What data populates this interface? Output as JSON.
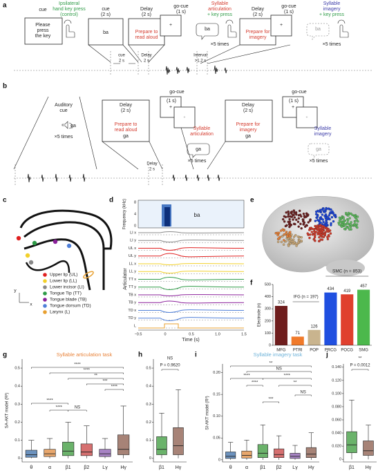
{
  "labels": [
    "a",
    "cue",
    "Ipsilateral",
    "hand key press",
    "(control)",
    "Please",
    "press",
    "the key",
    "cue",
    "(2 s)",
    "Delay",
    "(2 s)",
    "go-cue",
    "(1 s)",
    "ba",
    "+",
    "Prepare to",
    "read aloud",
    "Syllable",
    "articulation",
    "+ key press",
    "ba",
    "×5 times",
    "Delay",
    "(2 s)",
    "go-cue",
    "(1 s)",
    "+",
    "Prepare for",
    "imagery",
    "Syllable",
    "imagery",
    "+ key press",
    "ba",
    "×5 times",
    "cue",
    "2 s",
    "Delay",
    "2 s",
    "Interval",
    ">1.2 s",
    "b",
    "go-cue",
    "(1 s)",
    "+",
    "go-cue",
    "(1 s)",
    "+",
    "Auditory",
    "cue",
    "ga",
    "×5 times",
    "Delay",
    "(2 s)",
    "Prepare to",
    "read aloud",
    "ga",
    "+",
    "Syllable",
    "articulation",
    "ga",
    "×5 times",
    "Delay",
    "(2 s)",
    "Prepare for",
    "imagery",
    "ga",
    "+",
    "Syllable",
    "imagery",
    "ga",
    "×5 times",
    "Delay",
    "2 s",
    "c",
    "Upper lip (UL)",
    "Lower lip (LL)",
    "Lower incisor (LI)",
    "Tongue Tip (TT)",
    "Tongue blade (TB)",
    "Tongue dorsum (TD)",
    "Larynx (L)",
    "y",
    "x",
    "d",
    "ba",
    "Frequency (kHz)",
    "Articulator",
    "LI x",
    "LI y",
    "UL x",
    "UL y",
    "LL x",
    "LL y",
    "TT x",
    "TT y",
    "TB x",
    "TB y",
    "TD x",
    "TD y",
    "L",
    "Time (s)",
    "8",
    "4",
    "0",
    "−0.5",
    "0",
    "0.5",
    "1.0",
    "1.5",
    "e",
    "f",
    "g",
    "h",
    "i",
    "j"
  ],
  "chart_data": [
    {
      "type": "bar",
      "y_label": "Electrode (n)",
      "categories": [
        "MFG",
        "PTRI",
        "POP",
        "PRCG",
        "POCG",
        "SMG"
      ],
      "values": [
        324,
        71,
        126,
        434,
        419,
        457
      ],
      "colors": [
        "#6e1d1d",
        "#f07a2a",
        "#c9b48e",
        "#1f4fe0",
        "#e0402e",
        "#4cb84c"
      ],
      "ylim": [
        0,
        500
      ],
      "yticks": [
        0,
        100,
        200,
        300,
        400,
        500
      ],
      "annotations": [
        "IFG (n = 197)",
        "SMC (n = 853)"
      ]
    },
    {
      "type": "box",
      "title": "Syllable articulation task",
      "title_color": "#e8833a",
      "y_label": "SA-AKT model (R²)",
      "categories": [
        "θ",
        "α",
        "β1",
        "β2",
        "Lγ",
        "Hγ"
      ],
      "colors": [
        "#3b6ea8",
        "#e08a3c",
        "#3a9a3a",
        "#c84040",
        "#8a5ab0",
        "#8a5a4a"
      ],
      "boxes": [
        {
          "whislo": 0,
          "q1": 0.006,
          "median": 0.02,
          "q3": 0.045,
          "whishi": 0.1
        },
        {
          "whislo": 0,
          "q1": 0.01,
          "median": 0.025,
          "q3": 0.05,
          "whishi": 0.11
        },
        {
          "whislo": 0,
          "q1": 0.015,
          "median": 0.04,
          "q3": 0.09,
          "whishi": 0.2
        },
        {
          "whislo": 0,
          "q1": 0.015,
          "median": 0.035,
          "q3": 0.08,
          "whishi": 0.18
        },
        {
          "whislo": 0,
          "q1": 0.01,
          "median": 0.025,
          "q3": 0.05,
          "whishi": 0.11
        },
        {
          "whislo": 0,
          "q1": 0.02,
          "median": 0.05,
          "q3": 0.13,
          "whishi": 0.29
        }
      ],
      "ylim": [
        -0.02,
        0.55
      ],
      "yticks": [
        0,
        0.1,
        0.2,
        0.3,
        0.4,
        0.5
      ],
      "annotations": [
        "****",
        "****",
        "**",
        "***",
        "****",
        "****",
        "****",
        "NS"
      ]
    },
    {
      "type": "box",
      "categories": [
        "β1",
        "Hγ"
      ],
      "colors": [
        "#3a9a3a",
        "#8a5a4a"
      ],
      "boxes": [
        {
          "whislo": 0,
          "q1": 0.02,
          "median": 0.05,
          "q3": 0.12,
          "whishi": 0.25
        },
        {
          "whislo": 0,
          "q1": 0.02,
          "median": 0.07,
          "q3": 0.17,
          "whishi": 0.38
        }
      ],
      "ylim": [
        -0.02,
        0.55
      ],
      "yticks": [
        0,
        0.1,
        0.2,
        0.3,
        0.4,
        0.5
      ],
      "annotations": [
        "NS",
        "P = 0.9620"
      ]
    },
    {
      "type": "box",
      "title": "Syllable imagery task",
      "title_color": "#6fb3d9",
      "y_label": "SI-AKT model (R²)",
      "categories": [
        "θ",
        "α",
        "β1",
        "β2",
        "Lγ",
        "Hγ"
      ],
      "colors": [
        "#3b6ea8",
        "#e08a3c",
        "#3a9a3a",
        "#c84040",
        "#8a5ab0",
        "#8a5a4a"
      ],
      "boxes": [
        {
          "whislo": 0,
          "q1": 0.003,
          "median": 0.008,
          "q3": 0.018,
          "whishi": 0.04
        },
        {
          "whislo": 0,
          "q1": 0.004,
          "median": 0.01,
          "q3": 0.02,
          "whishi": 0.045
        },
        {
          "whislo": 0,
          "q1": 0.005,
          "median": 0.015,
          "q3": 0.035,
          "whishi": 0.08
        },
        {
          "whislo": 0,
          "q1": 0.005,
          "median": 0.012,
          "q3": 0.025,
          "whishi": 0.055
        },
        {
          "whislo": 0,
          "q1": 0.003,
          "median": 0.008,
          "q3": 0.015,
          "whishi": 0.033
        },
        {
          "whislo": 0,
          "q1": 0.005,
          "median": 0.013,
          "q3": 0.028,
          "whishi": 0.062
        }
      ],
      "ylim": [
        -0.005,
        0.22
      ],
      "yticks": [
        0,
        0.05,
        {
          "value": 0.1,
          "label": "0.10"
        },
        0.15,
        {
          "value": 0.2,
          "label": "0.20"
        }
      ],
      "annotations": [
        "**",
        "NS",
        "****",
        "****",
        "****",
        "**",
        "NS",
        "***"
      ]
    },
    {
      "type": "box",
      "categories": [
        "β1",
        "Hγ"
      ],
      "colors": [
        "#3a9a3a",
        "#8a5a4a"
      ],
      "boxes": [
        {
          "whislo": 0,
          "q1": 0.01,
          "median": 0.022,
          "q3": 0.042,
          "whishi": 0.09
        },
        {
          "whislo": 0,
          "q1": 0.006,
          "median": 0.013,
          "q3": 0.028,
          "whishi": 0.052
        }
      ],
      "ylim": [
        -0.004,
        0.145
      ],
      "yticks": [
        0,
        {
          "value": 0.02,
          "label": "0.020"
        },
        {
          "value": 0.04,
          "label": "0.040"
        },
        {
          "value": 0.06,
          "label": "0.060"
        },
        {
          "value": 0.08,
          "label": "0.080"
        },
        {
          "value": 0.1,
          "label": "0.100"
        },
        {
          "value": 0.12,
          "label": "0.120"
        },
        {
          "value": 0.14,
          "label": "0.140"
        }
      ],
      "annotations": [
        "**",
        "P = 0.0012"
      ]
    }
  ]
}
